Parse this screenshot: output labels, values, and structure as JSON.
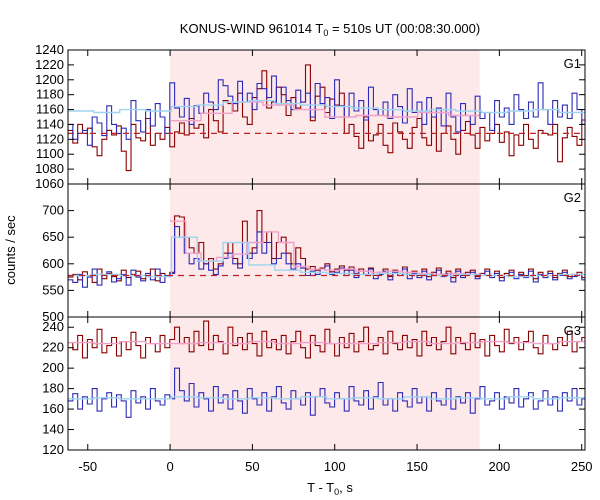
{
  "chart_data": {
    "type": "line",
    "title": {
      "main": "KONUS-WIND 961014 T",
      "sub": "0",
      "rest": " = 510s UT (00:08:30.000)"
    },
    "xlabel": {
      "main": "T - T",
      "sub": "0",
      "rest": ", s"
    },
    "ylabel": "counts / sec",
    "xlim": [
      -62,
      252
    ],
    "xticks": [
      -50,
      0,
      50,
      100,
      150,
      200,
      250
    ],
    "xtick_labels": [
      "-50",
      "0",
      "50",
      "100",
      "150",
      "200",
      "250"
    ],
    "highlight_interval": [
      0,
      188
    ],
    "colors": {
      "highlight": "#fde8ea",
      "dark_red": "#8b0000",
      "blue": "#2b2bb8",
      "pink": "#f0a0c8",
      "light_blue": "#9fd4f0",
      "red_dashed": "#c02020"
    },
    "panels": [
      {
        "label": "G1",
        "ylim": [
          1060,
          1240
        ],
        "yticks": [
          1060,
          1080,
          1100,
          1120,
          1140,
          1160,
          1180,
          1200,
          1220,
          1240
        ],
        "ytick_labels": [
          "1060",
          "1080",
          "1100",
          "1120",
          "1140",
          "1160",
          "1180",
          "1200",
          "1220",
          "1240"
        ],
        "background_level": 1128,
        "series": [
          {
            "color": "dark_red",
            "start": -62,
            "step": 2.944,
            "values": [
              1132,
              1115,
              1140,
              1128,
              1135,
              1110,
              1098,
              1120,
              1132,
              1126,
              1138,
              1104,
              1078,
              1140,
              1122,
              1118,
              1148,
              1112,
              1128,
              1120,
              1136,
              1110,
              1130,
              1142,
              1126,
              1148,
              1135,
              1140,
              1122,
              1160,
              1145,
              1130,
              1172,
              1168,
              1158,
              1182,
              1150,
              1140,
              1176,
              1188,
              1212,
              1162,
              1170,
              1190,
              1180,
              1152,
              1176,
              1162,
              1170,
              1220,
              1145,
              1178,
              1190,
              1156,
              1174,
              1166,
              1182,
              1128,
              1140,
              1124,
              1108,
              1150,
              1118,
              1126,
              1140,
              1112,
              1102,
              1142,
              1130,
              1120,
              1108,
              1136,
              1148,
              1122,
              1112,
              1150,
              1104,
              1128,
              1138,
              1120,
              1100,
              1132,
              1144,
              1126,
              1108,
              1136,
              1118,
              1128,
              1140,
              1116,
              1130,
              1098,
              1126,
              1112,
              1140,
              1120,
              1108,
              1132,
              1128,
              1126,
              1140,
              1090,
              1122,
              1136,
              1124,
              1112,
              1146,
              1130,
              1138,
              1120
            ]
          },
          {
            "color": "blue",
            "start": -62,
            "step": 2.944,
            "values": [
              1140,
              1120,
              1128,
              1132,
              1112,
              1150,
              1142,
              1125,
              1165,
              1140,
              1128,
              1135,
              1120,
              1172,
              1145,
              1130,
              1160,
              1138,
              1168,
              1150,
              1128,
              1196,
              1162,
              1150,
              1175,
              1140,
              1165,
              1155,
              1182,
              1170,
              1160,
              1200,
              1192,
              1178,
              1168,
              1198,
              1170,
              1182,
              1160,
              1195,
              1188,
              1176,
              1205,
              1168,
              1190,
              1172,
              1160,
              1186,
              1170,
              1182,
              1150,
              1195,
              1168,
              1176,
              1148,
              1200,
              1165,
              1150,
              1182,
              1158,
              1172,
              1146,
              1190,
              1160,
              1152,
              1170,
              1148,
              1180,
              1164,
              1142,
              1188,
              1156,
              1170,
              1140,
              1176,
              1150,
              1162,
              1138,
              1182,
              1150,
              1130,
              1168,
              1152,
              1140,
              1178,
              1148,
              1156,
              1132,
              1172,
              1150,
              1162,
              1140,
              1180,
              1160,
              1148,
              1170,
              1150,
              1196,
              1160,
              1140,
              1172,
              1150,
              1166,
              1148,
              1182,
              1160,
              1140,
              1175
            ]
          },
          {
            "color": "pink",
            "start": 0,
            "step": 18.8,
            "values": [
              1145,
              1155,
              1170,
              1166,
              1160,
              1150,
              1152,
              1150,
              1156,
              1152
            ]
          },
          {
            "color": "light_blue",
            "start": -62,
            "step": 15.7,
            "values": [
              1158,
              1156,
              1160,
              1158,
              1164,
              1166,
              1170,
              1172,
              1168,
              1166,
              1164,
              1162,
              1160,
              1158,
              1160,
              1158,
              1156,
              1158,
              1160,
              1156
            ]
          }
        ]
      },
      {
        "label": "G2",
        "ylim": [
          500,
          750
        ],
        "yticks": [
          500,
          550,
          600,
          650,
          700
        ],
        "ytick_labels": [
          "500",
          "550",
          "600",
          "650",
          "700"
        ],
        "background_level": 578,
        "series": [
          {
            "color": "dark_red",
            "start": -62,
            "step": 2.944,
            "values": [
              575,
              580,
              570,
              585,
              578,
              565,
              590,
              572,
              582,
              576,
              568,
              588,
              574,
              580,
              586,
              572,
              578,
              590,
              568,
              582,
              576,
              584,
              690,
              688,
              650,
              630,
              620,
              640,
              600,
              610,
              590,
              600,
              620,
              640,
              610,
              600,
              680,
              620,
              630,
              700,
              640,
              660,
              610,
              640,
              650,
              620,
              600,
              630,
              610,
              590,
              595,
              588,
              592,
              600,
              585,
              590,
              596,
              588,
              594,
              582,
              590,
              586,
              592,
              578,
              584,
              590,
              576,
              588,
              582,
              594,
              580,
              586,
              578,
              590,
              576,
              584,
              592,
              580,
              586,
              574,
              590,
              578,
              584,
              588,
              576,
              582,
              590,
              578,
              586,
              574,
              582,
              588,
              576,
              584,
              578,
              590,
              572,
              584,
              578,
              586,
              574,
              582,
              588,
              576,
              580,
              584,
              574,
              578
            ]
          },
          {
            "color": "blue",
            "start": -62,
            "step": 2.944,
            "values": [
              570,
              565,
              580,
              556,
              575,
              590,
              560,
              578,
              585,
              566,
              572,
              580,
              560,
              588,
              575,
              568,
              582,
              570,
              590,
              565,
              578,
              582,
              670,
              650,
              620,
              600,
              610,
              590,
              600,
              588,
              580,
              596,
              610,
              620,
              600,
              592,
              640,
              610,
              620,
              660,
              620,
              640,
              600,
              610,
              620,
              600,
              590,
              600,
              592,
              578,
              586,
              580,
              590,
              596,
              580,
              584,
              592,
              578,
              588,
              574,
              586,
              580,
              590,
              572,
              580,
              586,
              570,
              584,
              578,
              590,
              572,
              582,
              574,
              586,
              570,
              580,
              588,
              576,
              582,
              566,
              586,
              574,
              580,
              584,
              572,
              578,
              586,
              574,
              582,
              568,
              578,
              584,
              572,
              580,
              574,
              586,
              566,
              580,
              574,
              582,
              570,
              578,
              584,
              572,
              576,
              580,
              570,
              574
            ]
          },
          {
            "color": "pink",
            "start": 0,
            "step": 9.4,
            "values": [
              680,
              620,
              605,
              612,
              618,
              640,
              660,
              640,
              595,
              590,
              588,
              590,
              586,
              584,
              586,
              584,
              582,
              580,
              582,
              580
            ]
          },
          {
            "color": "light_blue",
            "start": -62,
            "step": 15.7,
            "values": [
              578,
              580,
              578,
              576,
              650,
              605,
              640,
              598,
              588,
              584,
              582,
              580,
              582,
              580,
              578,
              580,
              578,
              576,
              578,
              580
            ]
          }
        ]
      },
      {
        "label": "G3",
        "ylim": [
          120,
          250
        ],
        "yticks": [
          120,
          140,
          160,
          180,
          200,
          220,
          240
        ],
        "ytick_labels": [
          "120",
          "140",
          "160",
          "180",
          "200",
          "220",
          "240"
        ],
        "background_level": null,
        "series": [
          {
            "color": "dark_red",
            "start": -62,
            "step": 2.944,
            "values": [
              225,
              218,
              232,
              210,
              228,
              220,
              238,
              215,
              222,
              230,
              212,
              226,
              218,
              235,
              222,
              210,
              230,
              224,
              216,
              232,
              220,
              228,
              240,
              224,
              230,
              216,
              236,
              222,
              246,
              218,
              232,
              226,
              214,
              240,
              222,
              230,
              218,
              234,
              224,
              212,
              236,
              220,
              228,
              218,
              232,
              214,
              226,
              236,
              220,
              210,
              232,
              222,
              216,
              238,
              224,
              212,
              230,
              220,
              234,
              216,
              226,
              240,
              218,
              222,
              230,
              214,
              236,
              224,
              218,
              232,
              220,
              228,
              212,
              236,
              222,
              230,
              218,
              226,
              240,
              214,
              230,
              224,
              218,
              234,
              220,
              228,
              212,
              232,
              222,
              216,
              238,
              224,
              230,
              218,
              226,
              236,
              220,
              214,
              232,
              224,
              218,
              230,
              222,
              236,
              216,
              226,
              230,
              244
            ]
          },
          {
            "color": "blue",
            "start": -62,
            "step": 2.944,
            "values": [
              168,
              175,
              160,
              172,
              165,
              180,
              158,
              170,
              176,
              162,
              174,
              168,
              152,
              178,
              166,
              172,
              160,
              180,
              168,
              164,
              174,
              170,
              200,
              178,
              168,
              185,
              162,
              176,
              170,
              158,
              182,
              166,
              174,
              160,
              178,
              168,
              156,
              180,
              170,
              164,
              176,
              158,
              172,
              182,
              166,
              160,
              178,
              170,
              164,
              176,
              154,
              172,
              180,
              166,
              162,
              176,
              170,
              158,
              182,
              168,
              164,
              178,
              160,
              172,
              186,
              164,
              170,
              158,
              176,
              168,
              162,
              180,
              166,
              172,
              158,
              176,
              168,
              164,
              180,
              160,
              172,
              166,
              176,
              156,
              170,
              182,
              164,
              168,
              176,
              160,
              172,
              166,
              180,
              162,
              170,
              176,
              160,
              168,
              178,
              164,
              172,
              158,
              176,
              168,
              180,
              164,
              170,
              174
            ]
          },
          {
            "color": "pink",
            "start": -62,
            "step": 15.7,
            "values": [
              225,
              224,
              226,
              224,
              224,
              225,
              224,
              226,
              224,
              225,
              224,
              224,
              225,
              226,
              224,
              225,
              226,
              225,
              224,
              226
            ]
          },
          {
            "color": "light_blue",
            "start": -62,
            "step": 15.7,
            "values": [
              170,
              171,
              170,
              170,
              172,
              171,
              170,
              171,
              170,
              172,
              170,
              171,
              170,
              172,
              170,
              171,
              170,
              172,
              170,
              171
            ]
          }
        ]
      }
    ]
  }
}
